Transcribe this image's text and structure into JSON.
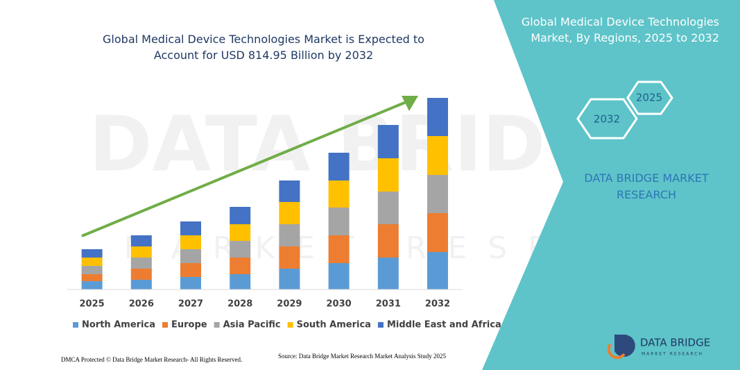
{
  "chart_data": {
    "type": "stacked-bar",
    "title": "Global Medical Device Technologies Market is Expected to Account for USD 814.95 Billion by 2032",
    "categories": [
      "2025",
      "2026",
      "2027",
      "2028",
      "2029",
      "2030",
      "2031",
      "2032"
    ],
    "series": [
      {
        "name": "North America",
        "color": "#5b9bd5",
        "values": [
          12,
          14,
          18,
          22,
          30,
          38,
          46,
          54
        ]
      },
      {
        "name": "Europe",
        "color": "#ed7d31",
        "values": [
          10,
          16,
          20,
          24,
          32,
          40,
          48,
          56
        ]
      },
      {
        "name": "Asia Pacific",
        "color": "#a5a5a5",
        "values": [
          12,
          16,
          20,
          24,
          32,
          40,
          47,
          55
        ]
      },
      {
        "name": "South America",
        "color": "#ffc000",
        "values": [
          12,
          16,
          20,
          24,
          32,
          39,
          48,
          56
        ]
      },
      {
        "name": "Middle East and Africa",
        "color": "#4472c4",
        "values": [
          12,
          16,
          20,
          25,
          31,
          40,
          48,
          55
        ]
      }
    ],
    "legend": "bottom",
    "trend_color": "#70ad47"
  },
  "panel": {
    "title": "Global Medical Device Technologies Market, By Regions, 2025 to 2032",
    "hex_start": "2025",
    "hex_end": "2032",
    "brand": "DATA BRIDGE MARKET RESEARCH",
    "color": "#5ec4c9"
  },
  "footer": {
    "copyright": "DMCA Protected © Data Bridge Market Research- All Rights Reserved.",
    "source": "Source: Data Bridge Market Research Market Analysis Study 2025"
  },
  "logo": {
    "name": "DATA BRIDGE",
    "tagline": "MARKET RESEARCH"
  },
  "watermark": {
    "name": "DATA BRIDGE",
    "tagline": "MARKET RESEARCH"
  }
}
